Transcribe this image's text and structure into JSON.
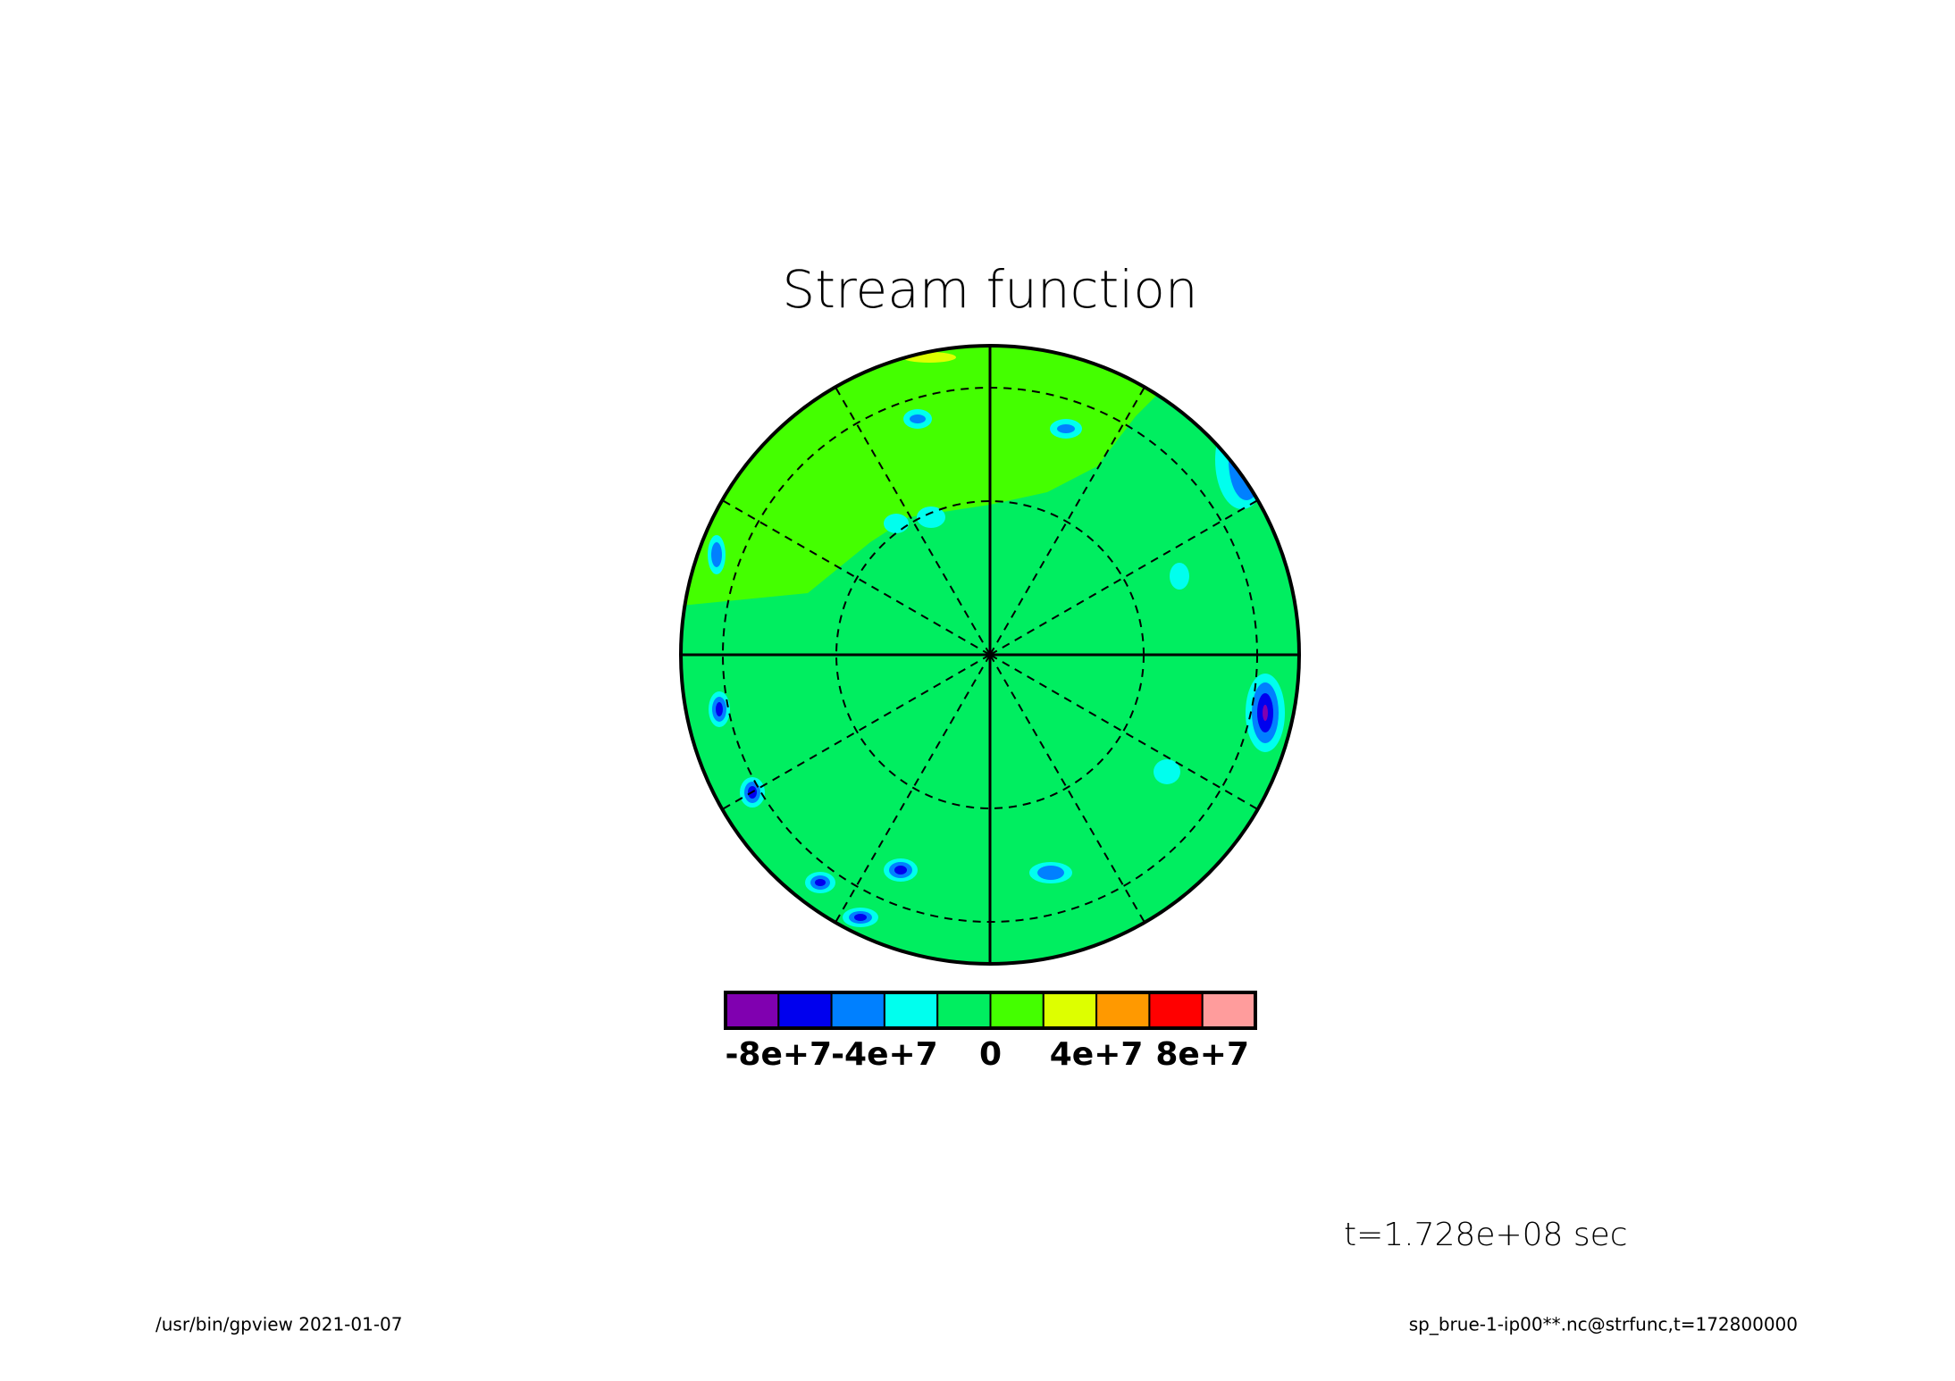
{
  "chart_data": {
    "type": "polar-contour",
    "title": "Stream function",
    "colorbar": {
      "bins": [
        -100000000,
        -80000000,
        -60000000,
        -40000000,
        -20000000,
        0,
        20000000,
        40000000,
        60000000,
        80000000,
        100000000
      ],
      "colors": [
        "#8000b0",
        "#0000ee",
        "#0080ff",
        "#00ffee",
        "#00ee60",
        "#44ff00",
        "#ddff00",
        "#ff9900",
        "#ff0000",
        "#ff9c9c"
      ],
      "xlim": [
        -100000000,
        100000000
      ],
      "xticks": [
        {
          "value": -80000000,
          "label": "-8e+7"
        },
        {
          "value": -40000000,
          "label": "-4e+7"
        },
        0,
        {
          "value": 40000000,
          "label": "4e+7"
        },
        {
          "value": 80000000,
          "label": "8e+7"
        }
      ]
    },
    "annotation": "t=1.728e+08 sec"
  },
  "footer": {
    "left": "/usr/bin/gpview  2021-01-07",
    "right": "sp_brue-1-ip00**.nc@strfunc,t=172800000"
  }
}
